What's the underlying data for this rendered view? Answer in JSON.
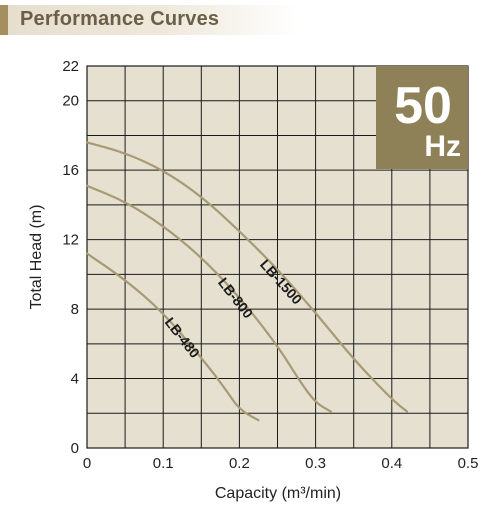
{
  "header": {
    "title": "Performance Curves"
  },
  "badge": {
    "value": "50",
    "unit": "Hz",
    "color": "#8f8157"
  },
  "colors": {
    "plot_bg": "#e6e0d1",
    "grid": "#1a1a1a",
    "curve": "#a89a74"
  },
  "chart_data": {
    "type": "line",
    "xlabel": "Capacity (m³/min)",
    "ylabel": "Total Head (m)",
    "xlim": [
      0,
      0.5
    ],
    "ylim": [
      0,
      22
    ],
    "x_ticks": [
      "0",
      "0.1",
      "0.2",
      "0.3",
      "0.4",
      "0.5"
    ],
    "y_ticks": [
      "0",
      "4",
      "8",
      "12",
      "16",
      "20",
      "22"
    ],
    "grid": true,
    "series": [
      {
        "name": "LB-480",
        "x": [
          0,
          0.05,
          0.1,
          0.15,
          0.18,
          0.2,
          0.225
        ],
        "y": [
          11.2,
          9.7,
          7.8,
          5.2,
          3.5,
          2.2,
          1.6
        ]
      },
      {
        "name": "LB-800",
        "x": [
          0,
          0.05,
          0.1,
          0.15,
          0.2,
          0.25,
          0.28,
          0.3,
          0.32
        ],
        "y": [
          15.1,
          14.2,
          12.8,
          11,
          8.7,
          5.9,
          3.8,
          2.6,
          2.1
        ]
      },
      {
        "name": "LB-1500",
        "x": [
          0,
          0.05,
          0.1,
          0.15,
          0.2,
          0.25,
          0.3,
          0.35,
          0.4,
          0.42
        ],
        "y": [
          17.6,
          17,
          16,
          14.5,
          12.5,
          10.3,
          7.8,
          5.1,
          2.8,
          2.1
        ]
      }
    ]
  }
}
